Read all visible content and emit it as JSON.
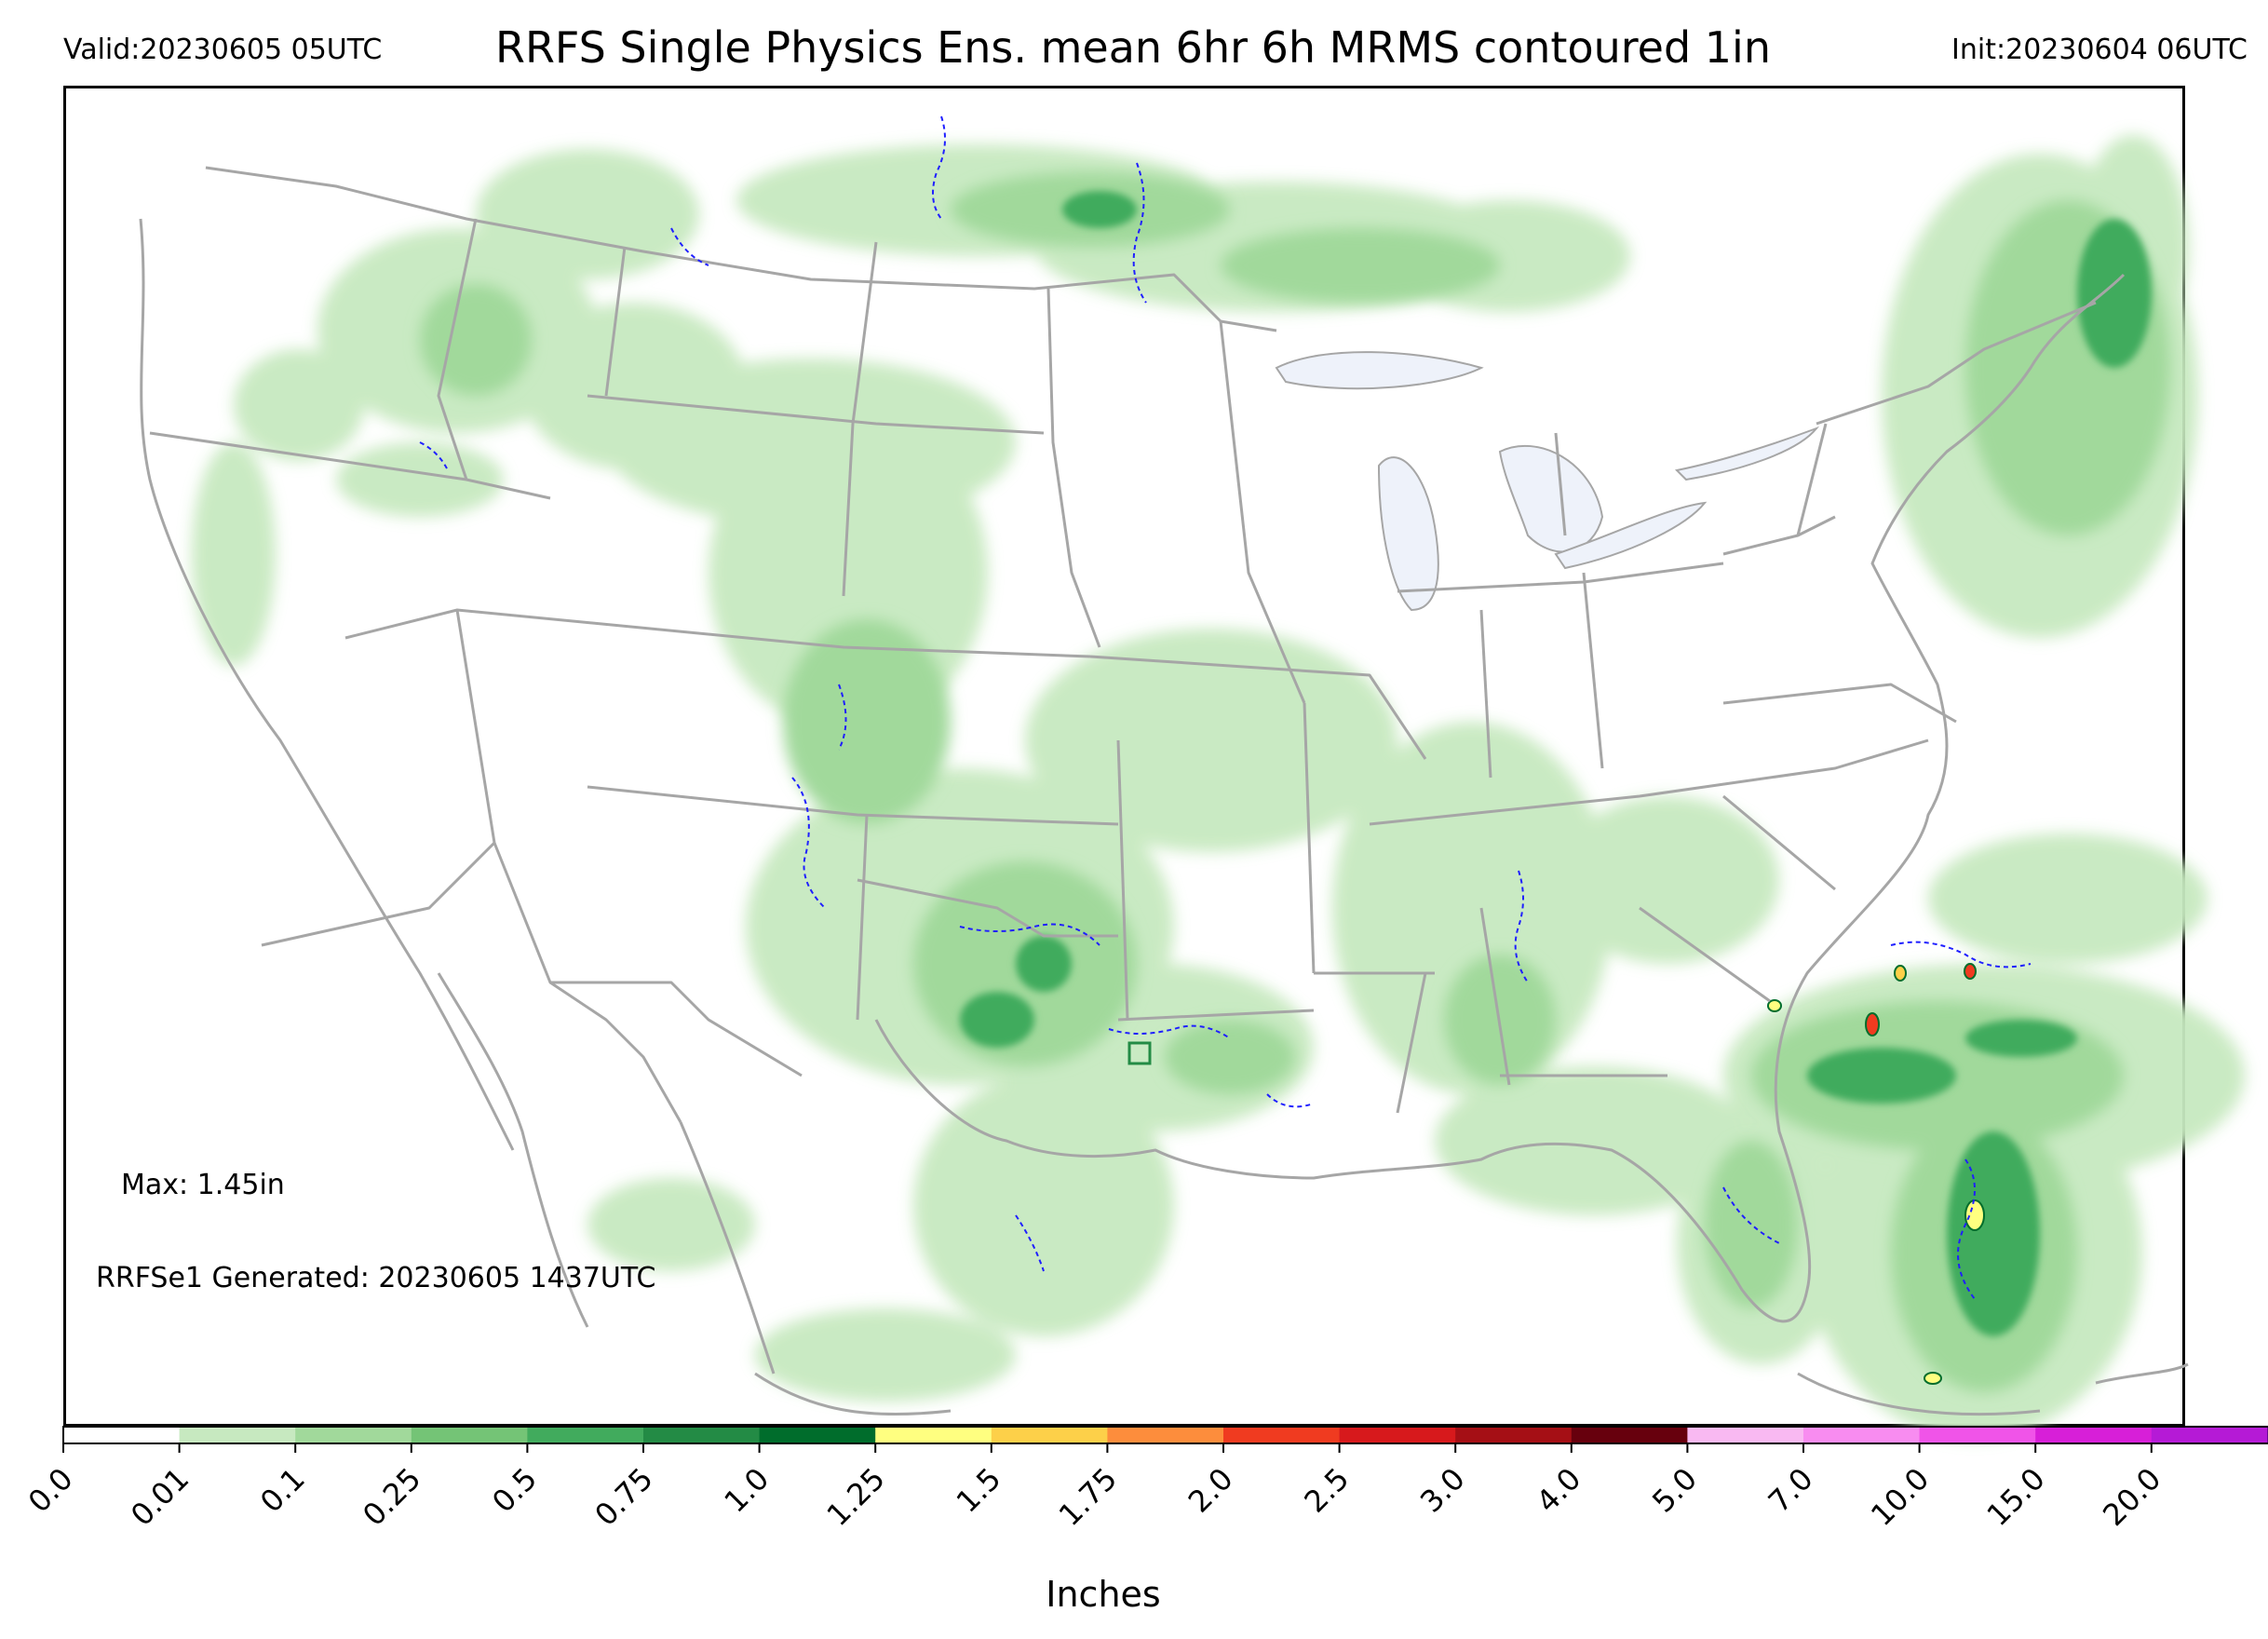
{
  "header": {
    "valid": "Valid:20230605 05UTC",
    "title": "RRFS Single Physics Ens. mean 6hr 6h MRMS contoured 1in",
    "init": "Init:20230604 06UTC"
  },
  "annotations": {
    "max": "Max: 1.45in",
    "generated": "RRFSe1 Generated: 20230605 1437UTC"
  },
  "colorbar": {
    "label": "Inches",
    "ticks": [
      "0.0",
      "0.01",
      "0.1",
      "0.25",
      "0.5",
      "0.75",
      "1.0",
      "1.25",
      "1.5",
      "1.75",
      "2.0",
      "2.5",
      "3.0",
      "4.0",
      "5.0",
      "7.0",
      "10.0",
      "15.0",
      "20.0"
    ],
    "colors": [
      "#ffffff",
      "#c7e9c0",
      "#a1d99b",
      "#74c476",
      "#41ab5d",
      "#238b45",
      "#006d2c",
      "#ffff80",
      "#fdd049",
      "#fd8d3c",
      "#f03b20",
      "#d7191c",
      "#a50f15",
      "#67000d",
      "#f9b9f2",
      "#f88cf0",
      "#f054e8",
      "#d71fd8",
      "#b51ad6",
      "#8310c4"
    ],
    "extend_color": "#3a0066"
  },
  "legend_colors": {
    "contour_1in": "#1f1fff",
    "borders": "#a6a6a6",
    "lakes": "#eef2fa"
  }
}
